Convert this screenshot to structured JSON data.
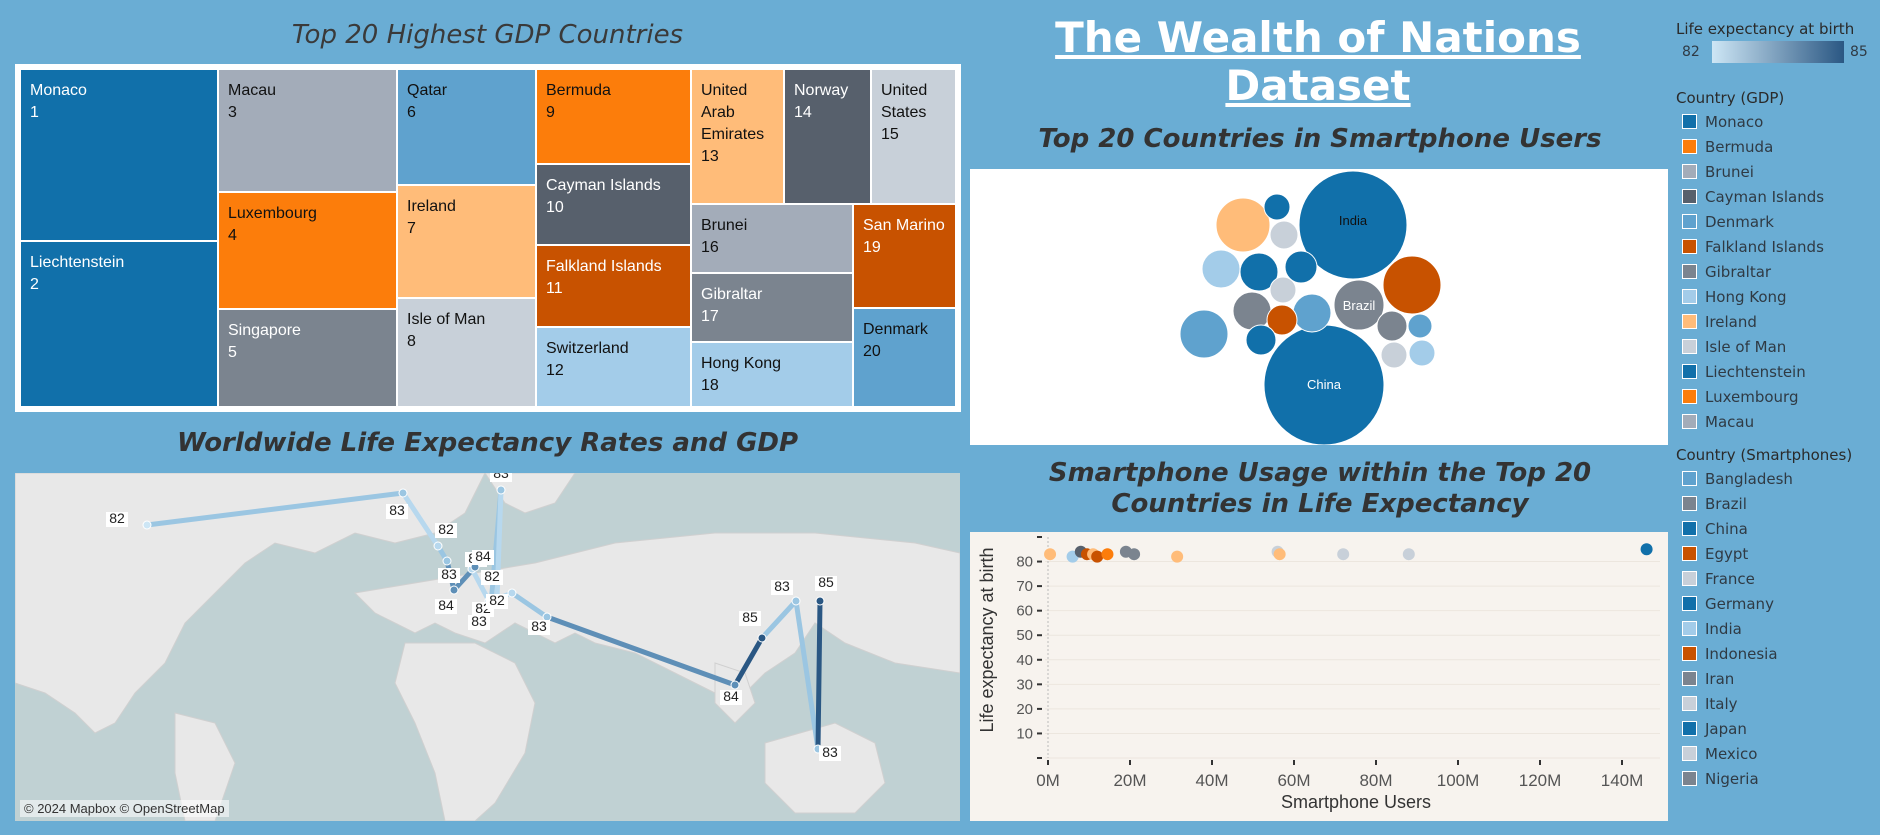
{
  "titles": {
    "main": "The Wealth of Nations Dataset",
    "treemap": "Top 20 Highest GDP Countries",
    "bubble": "Top 20 Countries in Smartphone Users",
    "map": "Worldwide Life Expectancy Rates and GDP",
    "scatter": "Smartphone Usage within the Top 20 Countries in Life Expectancy"
  },
  "treemap": {
    "cells": [
      {
        "name": "Monaco",
        "rank": "1",
        "color": "#1170aa",
        "text": "#fff"
      },
      {
        "name": "Liechtenstein",
        "rank": "2",
        "color": "#1170aa",
        "text": "#fff"
      },
      {
        "name": "Macau",
        "rank": "3",
        "color": "#a3acb9",
        "text": "#111"
      },
      {
        "name": "Luxembourg",
        "rank": "4",
        "color": "#fc7d0b",
        "text": "#111"
      },
      {
        "name": "Singapore",
        "rank": "5",
        "color": "#7b848f",
        "text": "#fff"
      },
      {
        "name": "Qatar",
        "rank": "6",
        "color": "#5fa2ce",
        "text": "#111"
      },
      {
        "name": "Ireland",
        "rank": "7",
        "color": "#ffbc79",
        "text": "#111"
      },
      {
        "name": "Isle of Man",
        "rank": "8",
        "color": "#c8d0d9",
        "text": "#111"
      },
      {
        "name": "Bermuda",
        "rank": "9",
        "color": "#fc7d0b",
        "text": "#111"
      },
      {
        "name": "Cayman Islands",
        "rank": "10",
        "color": "#57606c",
        "text": "#fff"
      },
      {
        "name": "Falkland Islands",
        "rank": "11",
        "color": "#c85200",
        "text": "#fff"
      },
      {
        "name": "Switzerland",
        "rank": "12",
        "color": "#a3cce9",
        "text": "#111"
      },
      {
        "name": "United Arab Emirates",
        "rank": "13",
        "color": "#ffbc79",
        "text": "#111"
      },
      {
        "name": "Norway",
        "rank": "14",
        "color": "#57606c",
        "text": "#fff"
      },
      {
        "name": "United States",
        "rank": "15",
        "color": "#c8d0d9",
        "text": "#111"
      },
      {
        "name": "Brunei",
        "rank": "16",
        "color": "#a3acb9",
        "text": "#111"
      },
      {
        "name": "Gibraltar",
        "rank": "17",
        "color": "#7b848f",
        "text": "#fff"
      },
      {
        "name": "Hong Kong",
        "rank": "18",
        "color": "#a3cce9",
        "text": "#111"
      },
      {
        "name": "San Marino",
        "rank": "19",
        "color": "#c85200",
        "text": "#fff"
      },
      {
        "name": "Denmark",
        "rank": "20",
        "color": "#5fa2ce",
        "text": "#111"
      }
    ]
  },
  "bubble": {
    "labels": {
      "india": "India",
      "brazil": "Brazil",
      "china": "China"
    }
  },
  "map": {
    "attribution": "© 2024 Mapbox © OpenStreetMap",
    "points": [
      {
        "label": "82"
      },
      {
        "label": "83"
      },
      {
        "label": "82"
      },
      {
        "label": "83"
      },
      {
        "label": "84"
      },
      {
        "label": "82"
      },
      {
        "label": "84"
      },
      {
        "label": "82"
      },
      {
        "label": "83"
      },
      {
        "label": "82"
      },
      {
        "label": "83"
      },
      {
        "label": "82"
      },
      {
        "label": "83"
      },
      {
        "label": "84"
      },
      {
        "label": "85"
      },
      {
        "label": "83"
      },
      {
        "label": "85"
      },
      {
        "label": "83"
      }
    ]
  },
  "legends": {
    "life_expectancy": {
      "title": "Life expectancy at birth",
      "min": "82",
      "max": "85",
      "color_low": "#cde6f5",
      "color_high": "#2a5783"
    },
    "gdp": {
      "title": "Country (GDP)",
      "items": [
        {
          "label": "Monaco",
          "color": "#1170aa"
        },
        {
          "label": "Bermuda",
          "color": "#fc7d0b"
        },
        {
          "label": "Brunei",
          "color": "#a3acb9"
        },
        {
          "label": "Cayman Islands",
          "color": "#57606c"
        },
        {
          "label": "Denmark",
          "color": "#5fa2ce"
        },
        {
          "label": "Falkland Islands",
          "color": "#c85200"
        },
        {
          "label": "Gibraltar",
          "color": "#7b848f"
        },
        {
          "label": "Hong Kong",
          "color": "#a3cce9"
        },
        {
          "label": "Ireland",
          "color": "#ffbc79"
        },
        {
          "label": "Isle of Man",
          "color": "#c8d0d9"
        },
        {
          "label": "Liechtenstein",
          "color": "#1170aa"
        },
        {
          "label": "Luxembourg",
          "color": "#fc7d0b"
        },
        {
          "label": "Macau",
          "color": "#a3acb9"
        }
      ]
    },
    "smartphones": {
      "title": "Country (Smartphones)",
      "items": [
        {
          "label": "Bangladesh",
          "color": "#5fa2ce"
        },
        {
          "label": "Brazil",
          "color": "#7b848f"
        },
        {
          "label": "China",
          "color": "#1170aa"
        },
        {
          "label": "Egypt",
          "color": "#c85200"
        },
        {
          "label": "France",
          "color": "#c8d0d9"
        },
        {
          "label": "Germany",
          "color": "#1170aa"
        },
        {
          "label": "India",
          "color": "#a3cce9"
        },
        {
          "label": "Indonesia",
          "color": "#c85200"
        },
        {
          "label": "Iran",
          "color": "#7b848f"
        },
        {
          "label": "Italy",
          "color": "#c8d0d9"
        },
        {
          "label": "Japan",
          "color": "#1170aa"
        },
        {
          "label": "Mexico",
          "color": "#c8d0d9"
        },
        {
          "label": "Nigeria",
          "color": "#7b848f"
        }
      ]
    }
  },
  "chart_data": {
    "type": "scatter",
    "title": "Smartphone Usage within the Top 20 Countries in Life Expectancy",
    "xlabel": "Smartphone Users",
    "ylabel": "Life expectancy at birth",
    "xlim": [
      0,
      150000000
    ],
    "ylim": [
      0,
      90
    ],
    "xticks": [
      "0M",
      "20M",
      "40M",
      "60M",
      "80M",
      "100M",
      "120M",
      "140M"
    ],
    "yticks": [
      "10",
      "20",
      "30",
      "40",
      "50",
      "60",
      "70",
      "80"
    ],
    "points": [
      {
        "x": 500000,
        "y": 83,
        "color": "#ffbc79"
      },
      {
        "x": 6000000,
        "y": 82,
        "color": "#a3cce9"
      },
      {
        "x": 8000000,
        "y": 84,
        "color": "#57606c"
      },
      {
        "x": 9500000,
        "y": 83,
        "color": "#c85200"
      },
      {
        "x": 11000000,
        "y": 83,
        "color": "#ffbc79"
      },
      {
        "x": 12000000,
        "y": 82,
        "color": "#c85200"
      },
      {
        "x": 14500000,
        "y": 83,
        "color": "#fc7d0b"
      },
      {
        "x": 19000000,
        "y": 84,
        "color": "#7b848f"
      },
      {
        "x": 21000000,
        "y": 83,
        "color": "#7b848f"
      },
      {
        "x": 31500000,
        "y": 82,
        "color": "#ffbc79"
      },
      {
        "x": 56000000,
        "y": 84,
        "color": "#c8d0d9"
      },
      {
        "x": 56500000,
        "y": 83,
        "color": "#ffbc79"
      },
      {
        "x": 72000000,
        "y": 83,
        "color": "#c8d0d9"
      },
      {
        "x": 88000000,
        "y": 83,
        "color": "#c8d0d9"
      },
      {
        "x": 146000000,
        "y": 85,
        "color": "#1170aa"
      }
    ]
  }
}
